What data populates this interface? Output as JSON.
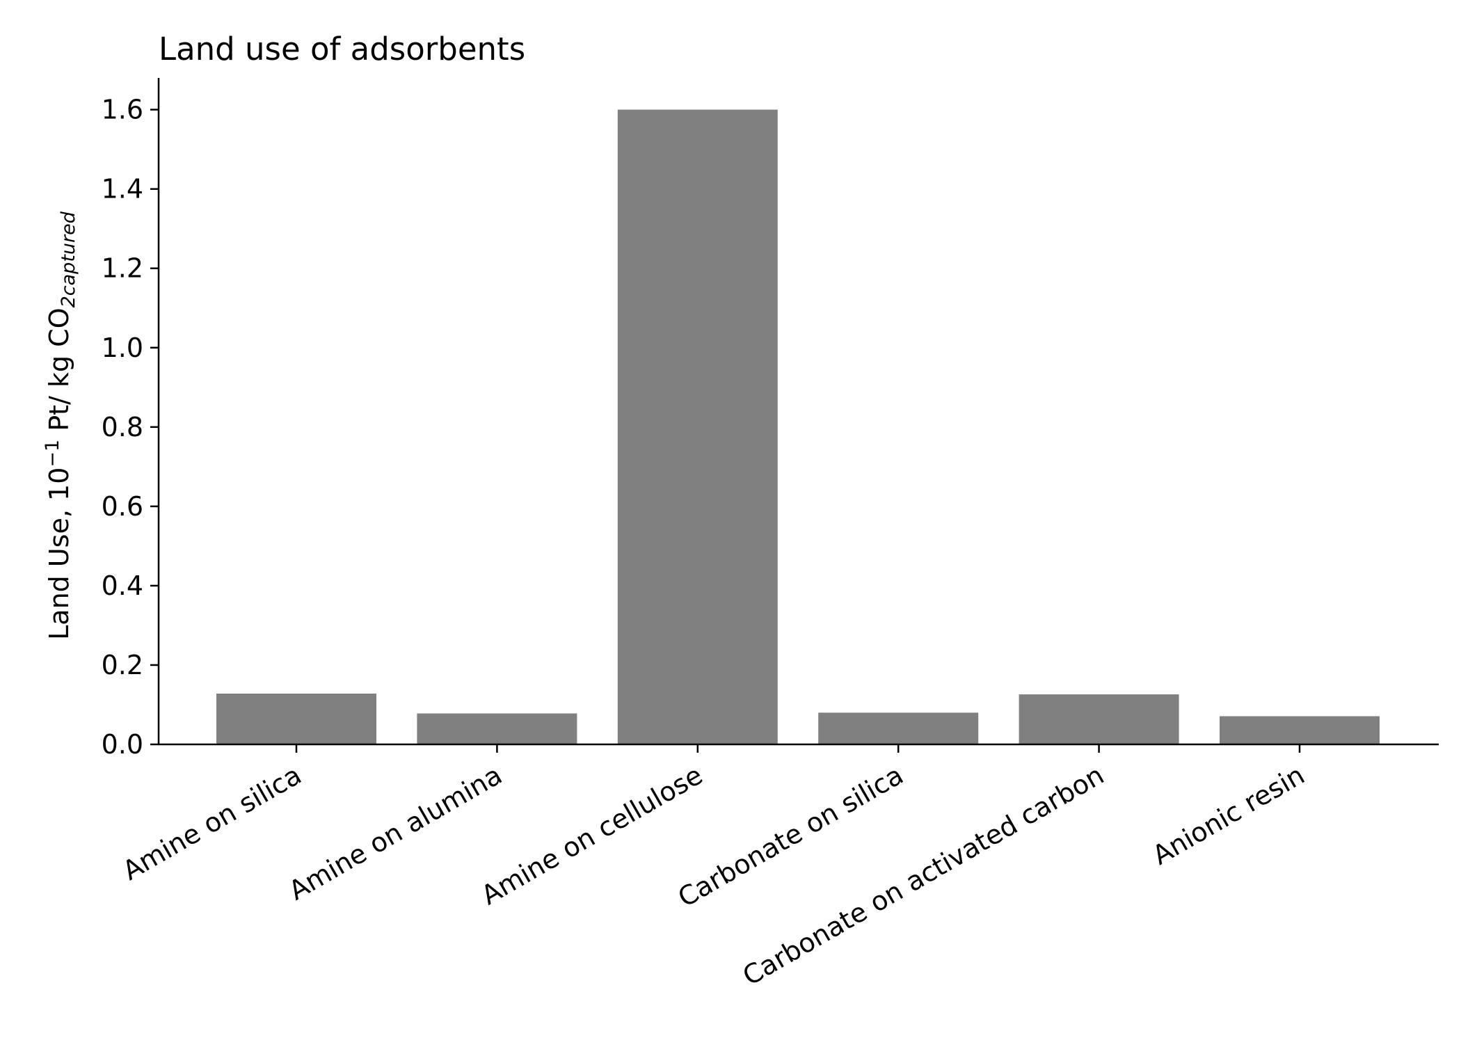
{
  "chart_data": {
    "type": "bar",
    "title": "Land use of adsorbents",
    "xlabel": "",
    "ylabel": {
      "main": "Land Use, 10",
      "superscript": "−1",
      "middle": " Pt/ kg CO",
      "subscript": "2captured"
    },
    "categories": [
      "Amine on silica",
      "Amine on alumina",
      "Amine on cellulose",
      "Carbonate on silica",
      "Carbonate on activated carbon",
      "Anionic resin"
    ],
    "values": [
      0.128,
      0.078,
      1.6,
      0.08,
      0.126,
      0.071
    ],
    "ylim": [
      0,
      1.68
    ],
    "yticks": [
      0.0,
      0.2,
      0.4,
      0.6,
      0.8,
      1.0,
      1.2,
      1.4,
      1.6
    ],
    "ytick_labels": [
      "0.0",
      "0.2",
      "0.4",
      "0.6",
      "0.8",
      "1.0",
      "1.2",
      "1.4",
      "1.6"
    ],
    "bar_color": "#808080",
    "grid": false,
    "legend": "none"
  }
}
